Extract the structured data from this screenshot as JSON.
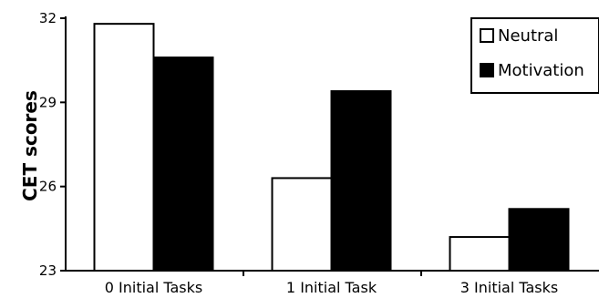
{
  "chart_data": {
    "type": "bar",
    "title": "",
    "xlabel": "",
    "ylabel": "CET scores",
    "categories": [
      "0 Initial Tasks",
      "1 Initial Task",
      "3 Initial Tasks"
    ],
    "series": [
      {
        "name": "Neutral",
        "values": [
          31.8,
          26.3,
          24.2
        ],
        "color": "#ffffff"
      },
      {
        "name": "Motivation",
        "values": [
          30.6,
          29.4,
          25.2
        ],
        "color": "#000000"
      }
    ],
    "ylim": [
      23,
      32
    ],
    "yticks": [
      23,
      26,
      29,
      32
    ],
    "legend": "top-right",
    "grid": false
  }
}
